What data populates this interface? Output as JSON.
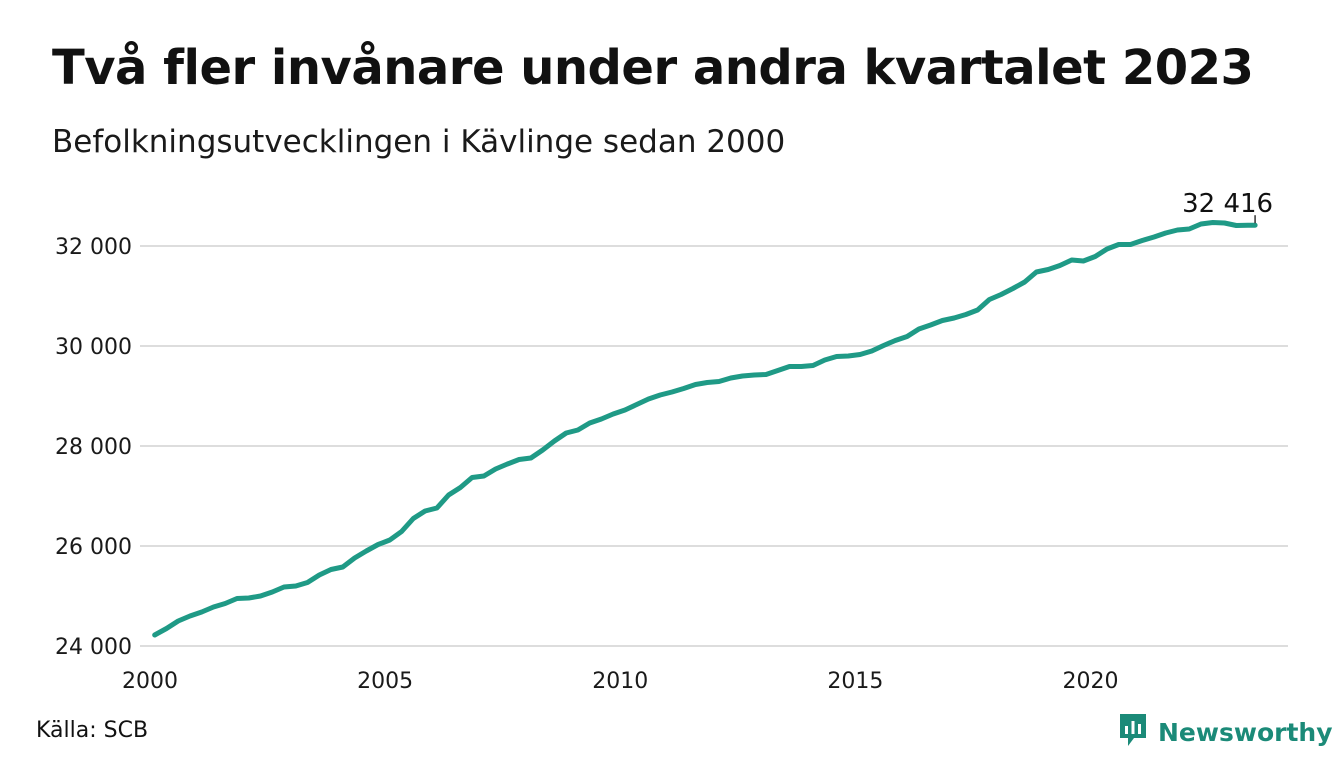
{
  "title": "Två fler invånare under andra kvartalet 2023",
  "subtitle": "Befolkningsutvecklingen i Kävlinge sedan 2000",
  "source": "Källa: SCB",
  "brand": {
    "name": "Newsworthy",
    "icon": "newsworthy-logo-icon",
    "color": "#1b8a78"
  },
  "colors": {
    "line": "#1f9a86",
    "grid": "#dddddd"
  },
  "chart_data": {
    "type": "line",
    "xlim": [
      2000,
      2024.2
    ],
    "ylim": [
      24000,
      32900
    ],
    "x_ticks": [
      {
        "value": 2000,
        "label": "2000"
      },
      {
        "value": 2005,
        "label": "2005"
      },
      {
        "value": 2010,
        "label": "2010"
      },
      {
        "value": 2015,
        "label": "2015"
      },
      {
        "value": 2020,
        "label": "2020"
      }
    ],
    "y_ticks": [
      {
        "value": 24000,
        "label": "24 000"
      },
      {
        "value": 26000,
        "label": "26 000"
      },
      {
        "value": 28000,
        "label": "28 000"
      },
      {
        "value": 30000,
        "label": "30 000"
      },
      {
        "value": 32000,
        "label": "32 000"
      }
    ],
    "grid": "horizontal",
    "annotation": {
      "x": 2023.5,
      "y": 32416,
      "label": "32 416"
    },
    "series": [
      {
        "x": [
          2000.1,
          2000.35,
          2000.6,
          2000.85,
          2001.1,
          2001.35,
          2001.6,
          2001.85,
          2002.1,
          2002.35,
          2002.6,
          2002.85,
          2003.1,
          2003.35,
          2003.6,
          2003.85,
          2004.1,
          2004.35,
          2004.6,
          2004.85,
          2005.1,
          2005.35,
          2005.6,
          2005.85,
          2006.1,
          2006.35,
          2006.6,
          2006.85,
          2007.1,
          2007.35,
          2007.6,
          2007.85,
          2008.1,
          2008.35,
          2008.6,
          2008.85,
          2009.1,
          2009.35,
          2009.6,
          2009.85,
          2010.1,
          2010.35,
          2010.6,
          2010.85,
          2011.1,
          2011.35,
          2011.6,
          2011.85,
          2012.1,
          2012.35,
          2012.6,
          2012.85,
          2013.1,
          2013.35,
          2013.6,
          2013.85,
          2014.1,
          2014.35,
          2014.6,
          2014.85,
          2015.1,
          2015.35,
          2015.6,
          2015.85,
          2016.1,
          2016.35,
          2016.6,
          2016.85,
          2017.1,
          2017.35,
          2017.6,
          2017.85,
          2018.1,
          2018.35,
          2018.6,
          2018.85,
          2019.1,
          2019.35,
          2019.6,
          2019.85,
          2020.1,
          2020.35,
          2020.6,
          2020.85,
          2021.1,
          2021.35,
          2021.6,
          2021.85,
          2022.1,
          2022.35,
          2022.6,
          2022.85,
          2023.1,
          2023.35,
          2023.5
        ],
        "y": [
          24220,
          24350,
          24500,
          24600,
          24680,
          24780,
          24850,
          24950,
          24960,
          25000,
          25080,
          25180,
          25200,
          25270,
          25420,
          25530,
          25580,
          25760,
          25900,
          26030,
          26120,
          26290,
          26550,
          26700,
          26760,
          27020,
          27170,
          27370,
          27400,
          27540,
          27640,
          27730,
          27760,
          27920,
          28100,
          28260,
          28320,
          28460,
          28540,
          28640,
          28720,
          28830,
          28940,
          29020,
          29080,
          29150,
          29230,
          29270,
          29290,
          29360,
          29400,
          29420,
          29430,
          29510,
          29590,
          29590,
          29610,
          29720,
          29790,
          29800,
          29830,
          29900,
          30010,
          30110,
          30190,
          30340,
          30420,
          30510,
          30560,
          30630,
          30720,
          30930,
          31030,
          31150,
          31280,
          31480,
          31530,
          31610,
          31720,
          31700,
          31790,
          31940,
          32030,
          32030,
          32110,
          32180,
          32260,
          32320,
          32340,
          32440,
          32470,
          32460,
          32410,
          32414,
          32416
        ]
      }
    ]
  }
}
